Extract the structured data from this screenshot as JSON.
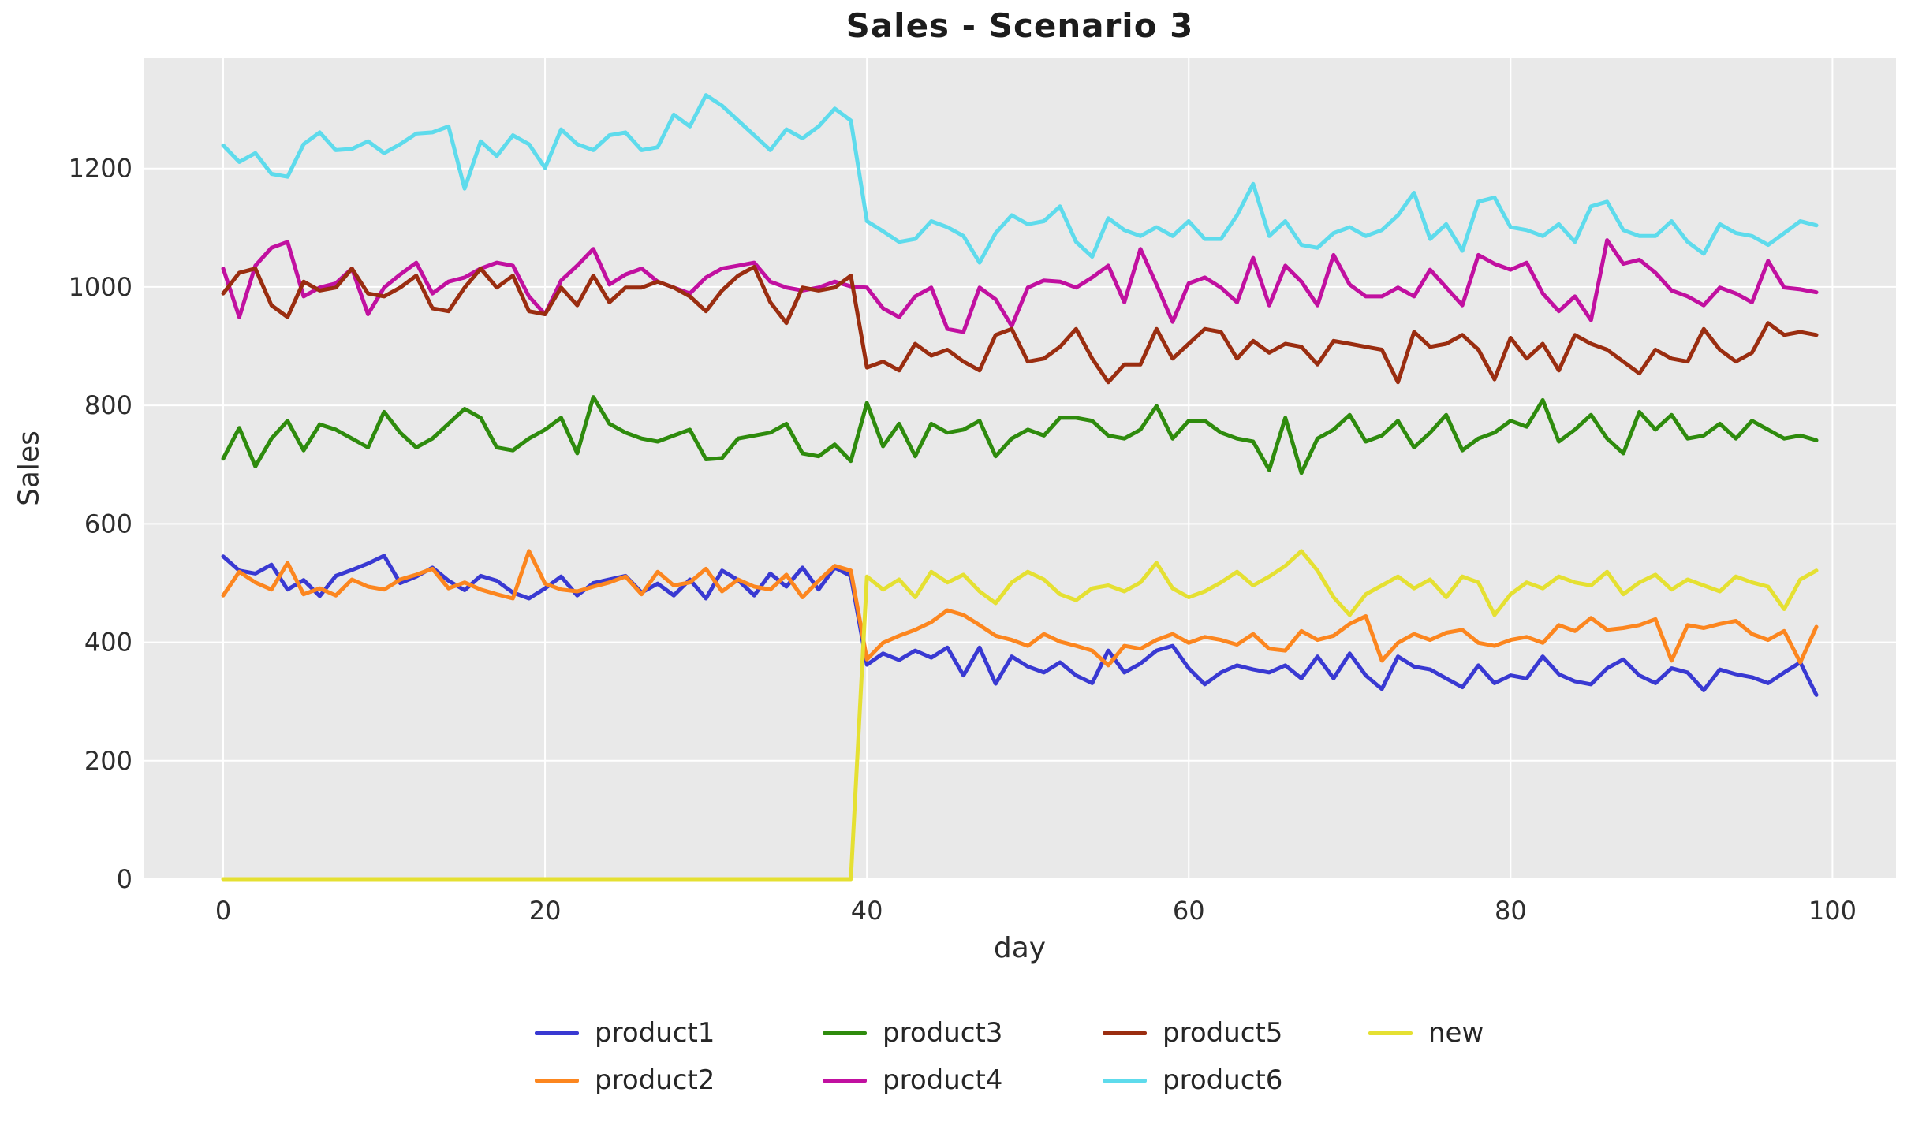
{
  "title": "Sales - Scenario 3",
  "axes": {
    "xlabel": "day",
    "ylabel": "Sales",
    "x_ticks": [
      0,
      20,
      40,
      60,
      80,
      100
    ],
    "y_ticks": [
      0,
      200,
      400,
      600,
      800,
      1000,
      1200
    ],
    "xlim": [
      -4.95,
      103.95
    ],
    "ylim": [
      0,
      1386
    ]
  },
  "style": {
    "plot_bg": "#e9e9e9",
    "grid_color": "#ffffff",
    "tick_color": "#2e2e2e",
    "title_color": "#1c1c1c"
  },
  "legend": {
    "position": "below-center",
    "rows": 2,
    "columns": 4,
    "entries": [
      {
        "label": "product1",
        "color": "#3939d2"
      },
      {
        "label": "product2",
        "color": "#fc861f"
      },
      {
        "label": "product3",
        "color": "#2e8b0d"
      },
      {
        "label": "product4",
        "color": "#c110a0"
      },
      {
        "label": "product5",
        "color": "#9a2d10"
      },
      {
        "label": "product6",
        "color": "#5edbec"
      },
      {
        "label": "new",
        "color": "#e5e032"
      }
    ]
  },
  "chart_data": {
    "type": "line",
    "title": "Sales - Scenario 3",
    "xlabel": "day",
    "ylabel": "Sales",
    "xlim": [
      -4.95,
      103.95
    ],
    "ylim": [
      0,
      1386
    ],
    "grid": true,
    "legend_position": "below",
    "x": [
      0,
      1,
      2,
      3,
      4,
      5,
      6,
      7,
      8,
      9,
      10,
      11,
      12,
      13,
      14,
      15,
      16,
      17,
      18,
      19,
      20,
      21,
      22,
      23,
      24,
      25,
      26,
      27,
      28,
      29,
      30,
      31,
      32,
      33,
      34,
      35,
      36,
      37,
      38,
      39,
      40,
      41,
      42,
      43,
      44,
      45,
      46,
      47,
      48,
      49,
      50,
      51,
      52,
      53,
      54,
      55,
      56,
      57,
      58,
      59,
      60,
      61,
      62,
      63,
      64,
      65,
      66,
      67,
      68,
      69,
      70,
      71,
      72,
      73,
      74,
      75,
      76,
      77,
      78,
      79,
      80,
      81,
      82,
      83,
      84,
      85,
      86,
      87,
      88,
      89,
      90,
      91,
      92,
      93,
      94,
      95,
      96,
      97,
      98,
      99
    ],
    "series": [
      {
        "name": "product1",
        "color": "#3939d2",
        "values": [
          545,
          521,
          516,
          531,
          489,
          505,
          478,
          512,
          522,
          533,
          546,
          500,
          511,
          526,
          504,
          488,
          512,
          504,
          484,
          474,
          491,
          511,
          479,
          500,
          506,
          512,
          484,
          499,
          479,
          506,
          474,
          521,
          505,
          479,
          516,
          494,
          526,
          489,
          526,
          512,
          362,
          381,
          370,
          386,
          374,
          391,
          344,
          391,
          330,
          376,
          359,
          349,
          366,
          344,
          331,
          386,
          349,
          364,
          386,
          394,
          356,
          329,
          349,
          361,
          354,
          349,
          361,
          339,
          376,
          339,
          381,
          344,
          321,
          376,
          359,
          354,
          339,
          324,
          361,
          331,
          344,
          339,
          376,
          346,
          334,
          329,
          356,
          371,
          344,
          331,
          356,
          349,
          319,
          354,
          346,
          341,
          331,
          349,
          366,
          311
        ]
      },
      {
        "name": "product2",
        "color": "#fc861f",
        "values": [
          479,
          519,
          501,
          489,
          534,
          481,
          491,
          479,
          506,
          494,
          489,
          506,
          514,
          524,
          491,
          501,
          489,
          481,
          474,
          554,
          499,
          489,
          486,
          494,
          501,
          511,
          481,
          519,
          496,
          501,
          524,
          486,
          506,
          494,
          489,
          514,
          476,
          504,
          529,
          521,
          371,
          399,
          411,
          421,
          434,
          454,
          446,
          429,
          411,
          404,
          394,
          414,
          401,
          394,
          386,
          361,
          394,
          389,
          404,
          414,
          399,
          409,
          404,
          396,
          414,
          389,
          386,
          419,
          404,
          411,
          431,
          444,
          369,
          399,
          414,
          404,
          416,
          421,
          399,
          394,
          404,
          409,
          399,
          429,
          419,
          441,
          421,
          424,
          429,
          439,
          369,
          429,
          424,
          431,
          436,
          414,
          404,
          419,
          366,
          426
        ]
      },
      {
        "name": "product3",
        "color": "#2e8b0d",
        "values": [
          710,
          762,
          697,
          744,
          774,
          724,
          768,
          759,
          744,
          729,
          789,
          754,
          729,
          744,
          769,
          794,
          779,
          729,
          724,
          744,
          759,
          779,
          719,
          814,
          769,
          754,
          744,
          739,
          749,
          759,
          709,
          711,
          744,
          749,
          754,
          769,
          719,
          714,
          734,
          706,
          804,
          731,
          769,
          714,
          769,
          754,
          759,
          774,
          714,
          744,
          759,
          749,
          779,
          779,
          774,
          749,
          744,
          759,
          799,
          744,
          774,
          774,
          754,
          744,
          739,
          691,
          779,
          686,
          744,
          759,
          784,
          739,
          749,
          774,
          729,
          754,
          784,
          724,
          744,
          754,
          774,
          764,
          809,
          739,
          759,
          784,
          744,
          719,
          789,
          759,
          784,
          744,
          749,
          769,
          744,
          774,
          759,
          744,
          749,
          741
        ]
      },
      {
        "name": "product4",
        "color": "#c110a0",
        "values": [
          1031,
          949,
          1036,
          1066,
          1076,
          984,
          999,
          1006,
          1031,
          954,
          999,
          1021,
          1041,
          989,
          1009,
          1016,
          1031,
          1041,
          1036,
          984,
          954,
          1011,
          1036,
          1064,
          1004,
          1021,
          1031,
          1009,
          999,
          989,
          1016,
          1031,
          1036,
          1041,
          1009,
          999,
          994,
          999,
          1009,
          1001,
          999,
          964,
          949,
          984,
          999,
          929,
          924,
          999,
          979,
          934,
          999,
          1011,
          1009,
          999,
          1016,
          1036,
          974,
          1064,
          1004,
          941,
          1006,
          1016,
          999,
          974,
          1049,
          969,
          1036,
          1009,
          969,
          1054,
          1004,
          984,
          984,
          999,
          984,
          1029,
          999,
          969,
          1054,
          1039,
          1029,
          1041,
          989,
          959,
          984,
          944,
          1079,
          1039,
          1046,
          1024,
          994,
          984,
          969,
          999,
          989,
          974,
          1044,
          999,
          996,
          991
        ]
      },
      {
        "name": "product5",
        "color": "#9a2d10",
        "values": [
          989,
          1024,
          1031,
          969,
          949,
          1009,
          994,
          999,
          1031,
          989,
          984,
          999,
          1019,
          964,
          959,
          999,
          1031,
          999,
          1019,
          959,
          954,
          999,
          969,
          1019,
          974,
          999,
          999,
          1009,
          999,
          984,
          959,
          994,
          1019,
          1034,
          974,
          939,
          999,
          994,
          999,
          1019,
          864,
          874,
          859,
          904,
          884,
          894,
          874,
          859,
          919,
          929,
          874,
          879,
          899,
          929,
          879,
          839,
          869,
          869,
          929,
          879,
          904,
          929,
          924,
          879,
          909,
          889,
          904,
          899,
          869,
          909,
          904,
          899,
          894,
          839,
          924,
          899,
          904,
          919,
          894,
          844,
          914,
          879,
          904,
          859,
          919,
          904,
          894,
          874,
          854,
          894,
          879,
          874,
          929,
          894,
          874,
          889,
          939,
          919,
          924,
          919
        ]
      },
      {
        "name": "product6",
        "color": "#5edbec",
        "values": [
          1239,
          1211,
          1226,
          1191,
          1186,
          1241,
          1261,
          1231,
          1233,
          1246,
          1226,
          1241,
          1259,
          1261,
          1271,
          1166,
          1246,
          1221,
          1256,
          1241,
          1201,
          1266,
          1241,
          1231,
          1256,
          1261,
          1231,
          1236,
          1291,
          1271,
          1324,
          1306,
          1281,
          1256,
          1231,
          1266,
          1251,
          1271,
          1301,
          1281,
          1111,
          1094,
          1076,
          1081,
          1111,
          1101,
          1086,
          1041,
          1091,
          1121,
          1106,
          1111,
          1136,
          1076,
          1051,
          1116,
          1096,
          1086,
          1101,
          1086,
          1111,
          1081,
          1081,
          1121,
          1174,
          1086,
          1111,
          1071,
          1066,
          1091,
          1101,
          1086,
          1096,
          1121,
          1159,
          1081,
          1106,
          1061,
          1144,
          1151,
          1101,
          1096,
          1086,
          1106,
          1076,
          1136,
          1144,
          1096,
          1086,
          1086,
          1111,
          1076,
          1056,
          1106,
          1091,
          1086,
          1071,
          1091,
          1111,
          1104
        ]
      },
      {
        "name": "new",
        "color": "#e5e032",
        "values": [
          0,
          0,
          0,
          0,
          0,
          0,
          0,
          0,
          0,
          0,
          0,
          0,
          0,
          0,
          0,
          0,
          0,
          0,
          0,
          0,
          0,
          0,
          0,
          0,
          0,
          0,
          0,
          0,
          0,
          0,
          0,
          0,
          0,
          0,
          0,
          0,
          0,
          0,
          0,
          0,
          511,
          489,
          506,
          476,
          519,
          501,
          514,
          486,
          466,
          501,
          519,
          506,
          481,
          471,
          491,
          496,
          486,
          501,
          534,
          491,
          476,
          486,
          501,
          519,
          496,
          511,
          529,
          554,
          521,
          476,
          446,
          481,
          496,
          511,
          491,
          506,
          476,
          511,
          501,
          446,
          481,
          501,
          491,
          511,
          501,
          496,
          519,
          481,
          501,
          514,
          489,
          506,
          496,
          486,
          511,
          501,
          494,
          456,
          506,
          521
        ]
      }
    ]
  }
}
